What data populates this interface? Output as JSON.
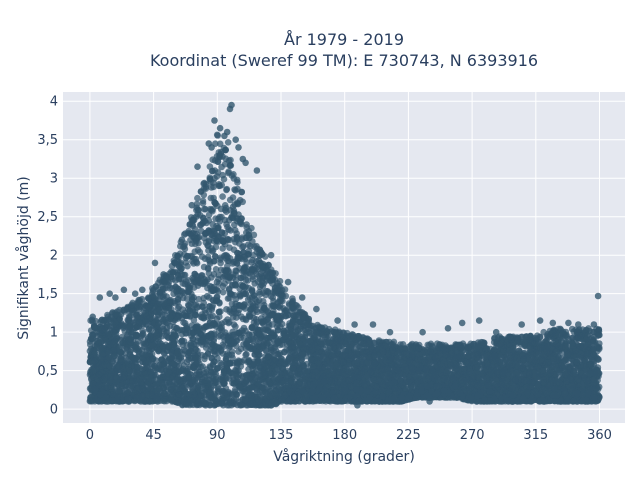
{
  "chart_data": {
    "type": "scatter",
    "title": "År 1979 - 2019",
    "subtitle": "Koordinat (Sweref 99 TM): E 730743, N 6393916",
    "xlabel": "Vågriktning (grader)",
    "ylabel": "Signifikant våghöjd (m)",
    "xlim": [
      -19,
      378
    ],
    "ylim": [
      -0.18,
      4.12
    ],
    "xticks": [
      0,
      45,
      90,
      135,
      180,
      225,
      270,
      315,
      360
    ],
    "xtick_labels": [
      "0",
      "45",
      "90",
      "135",
      "180",
      "225",
      "270",
      "315",
      "360"
    ],
    "yticks": [
      0,
      0.5,
      1,
      1.5,
      2,
      2.5,
      3,
      3.5,
      4
    ],
    "ytick_labels": [
      "0",
      "0,5",
      "1",
      "1,5",
      "2",
      "2,5",
      "3",
      "3,5",
      "4"
    ],
    "grid": true,
    "marker_color": "#32566e",
    "plot_bg": "#e5e8f0",
    "series": [
      {
        "x": [
          0,
          5,
          10,
          15,
          20,
          25,
          30,
          35,
          40,
          45,
          50,
          55,
          60,
          65,
          70,
          75,
          80,
          85,
          88,
          90,
          92,
          95,
          98,
          100,
          102,
          105,
          110,
          115,
          120,
          125,
          130,
          135,
          140,
          145,
          150,
          155,
          160,
          170,
          180,
          190,
          200,
          210,
          220,
          230,
          240,
          250,
          260,
          270,
          280,
          290,
          300,
          310,
          320,
          330,
          340,
          350,
          355,
          360
        ],
        "y_max": [
          1.2,
          1.15,
          1.2,
          1.25,
          1.3,
          1.35,
          1.4,
          1.45,
          1.5,
          1.6,
          1.7,
          1.8,
          2.0,
          2.2,
          2.45,
          2.7,
          2.95,
          3.2,
          3.5,
          3.6,
          3.5,
          3.4,
          3.5,
          3.2,
          3.1,
          3.0,
          2.6,
          2.3,
          2.1,
          1.95,
          1.8,
          1.65,
          1.5,
          1.4,
          1.3,
          1.2,
          1.1,
          1.05,
          1.0,
          0.95,
          0.9,
          0.9,
          0.85,
          0.85,
          0.85,
          0.85,
          0.85,
          0.85,
          0.9,
          0.95,
          0.95,
          0.95,
          1.0,
          1.05,
          1.05,
          1.05,
          1.05,
          1.05
        ],
        "y_min": [
          0.1,
          0.1,
          0.1,
          0.1,
          0.1,
          0.1,
          0.1,
          0.1,
          0.1,
          0.1,
          0.1,
          0.1,
          0.1,
          0.05,
          0.05,
          0.05,
          0.05,
          0.05,
          0.05,
          0.05,
          0.05,
          0.05,
          0.05,
          0.05,
          0.05,
          0.05,
          0.05,
          0.05,
          0.05,
          0.05,
          0.05,
          0.1,
          0.1,
          0.1,
          0.1,
          0.1,
          0.1,
          0.1,
          0.1,
          0.1,
          0.1,
          0.1,
          0.1,
          0.15,
          0.15,
          0.15,
          0.15,
          0.1,
          0.1,
          0.1,
          0.1,
          0.1,
          0.1,
          0.1,
          0.1,
          0.1,
          0.1,
          0.1
        ]
      }
    ],
    "outliers": [
      {
        "x": 100,
        "y": 3.95
      },
      {
        "x": 99,
        "y": 3.9
      },
      {
        "x": 88,
        "y": 3.75
      },
      {
        "x": 92,
        "y": 3.65
      },
      {
        "x": 97,
        "y": 3.6
      },
      {
        "x": 95,
        "y": 3.55
      },
      {
        "x": 84,
        "y": 3.45
      },
      {
        "x": 86,
        "y": 3.4
      },
      {
        "x": 103,
        "y": 3.5
      },
      {
        "x": 105,
        "y": 3.4
      },
      {
        "x": 108,
        "y": 3.25
      },
      {
        "x": 118,
        "y": 3.1
      },
      {
        "x": 110,
        "y": 3.2
      },
      {
        "x": 76,
        "y": 3.15
      },
      {
        "x": 72,
        "y": 2.65
      },
      {
        "x": 65,
        "y": 2.2
      },
      {
        "x": 60,
        "y": 1.9
      },
      {
        "x": 52,
        "y": 1.75
      },
      {
        "x": 46,
        "y": 1.9
      },
      {
        "x": 37,
        "y": 1.55
      },
      {
        "x": 32,
        "y": 1.5
      },
      {
        "x": 24,
        "y": 1.55
      },
      {
        "x": 18,
        "y": 1.45
      },
      {
        "x": 14,
        "y": 1.5
      },
      {
        "x": 7,
        "y": 1.45
      },
      {
        "x": 2,
        "y": 1.2
      },
      {
        "x": 128,
        "y": 2.0
      },
      {
        "x": 140,
        "y": 1.65
      },
      {
        "x": 150,
        "y": 1.45
      },
      {
        "x": 160,
        "y": 1.3
      },
      {
        "x": 175,
        "y": 1.15
      },
      {
        "x": 187,
        "y": 1.1
      },
      {
        "x": 200,
        "y": 1.1
      },
      {
        "x": 212,
        "y": 1.0
      },
      {
        "x": 235,
        "y": 1.0
      },
      {
        "x": 253,
        "y": 1.05
      },
      {
        "x": 263,
        "y": 1.12
      },
      {
        "x": 275,
        "y": 1.15
      },
      {
        "x": 287,
        "y": 1.0
      },
      {
        "x": 305,
        "y": 1.1
      },
      {
        "x": 318,
        "y": 1.15
      },
      {
        "x": 327,
        "y": 1.12
      },
      {
        "x": 338,
        "y": 1.12
      },
      {
        "x": 345,
        "y": 1.1
      },
      {
        "x": 356,
        "y": 1.1
      },
      {
        "x": 359,
        "y": 1.47
      },
      {
        "x": 189,
        "y": 0.05
      },
      {
        "x": 240,
        "y": 0.1
      }
    ]
  }
}
